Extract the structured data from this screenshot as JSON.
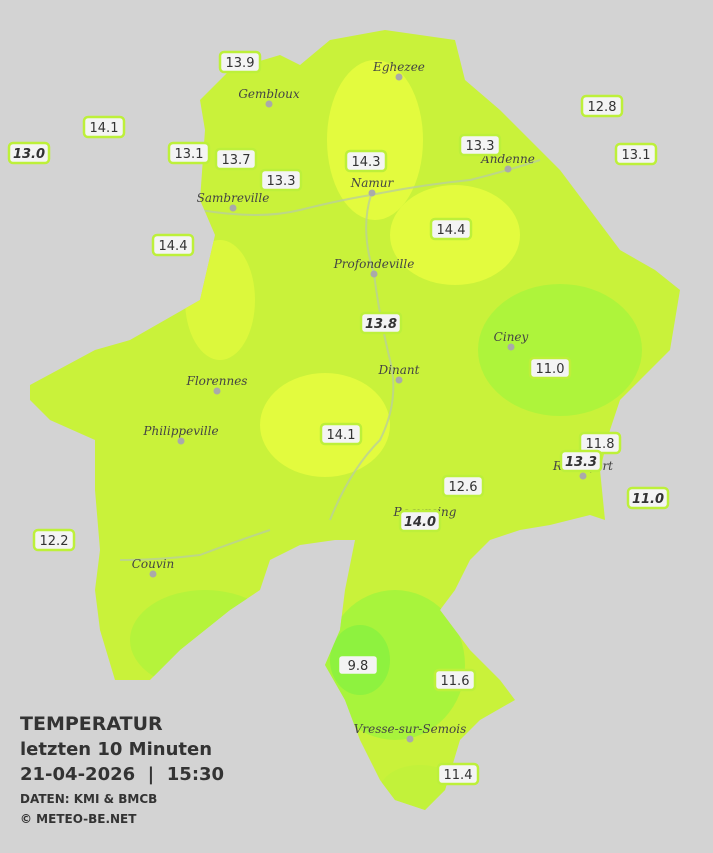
{
  "towns": [
    "Eghezee",
    "Gembloux",
    "Andenne",
    "Namur",
    "Sambreville",
    "Profondeville",
    "Ciney",
    "Dinant",
    "Florennes",
    "Philippeville",
    "Rochefort",
    "Beauraing",
    "Couvin",
    "Vresse-sur-Semois"
  ],
  "stations": [
    "13.9",
    "14.1",
    "13.0",
    "13.1",
    "13.7",
    "13.3",
    "14.3",
    "13.3",
    "12.8",
    "13.1",
    "14.4",
    "14.4",
    "13.8",
    "11.0",
    "14.1",
    "11.8",
    "13.3",
    "11.0",
    "12.6",
    "14.0",
    "12.2",
    "9.8",
    "11.6",
    "11.4"
  ],
  "legend": {
    "title": "TEMPERATUR",
    "subtitle": "letzten 10 Minuten",
    "datetime": "21-04-2026  |  15:30",
    "source": "DATEN: KMI & BMCB",
    "copyright": "© METEO-BE.NET"
  }
}
